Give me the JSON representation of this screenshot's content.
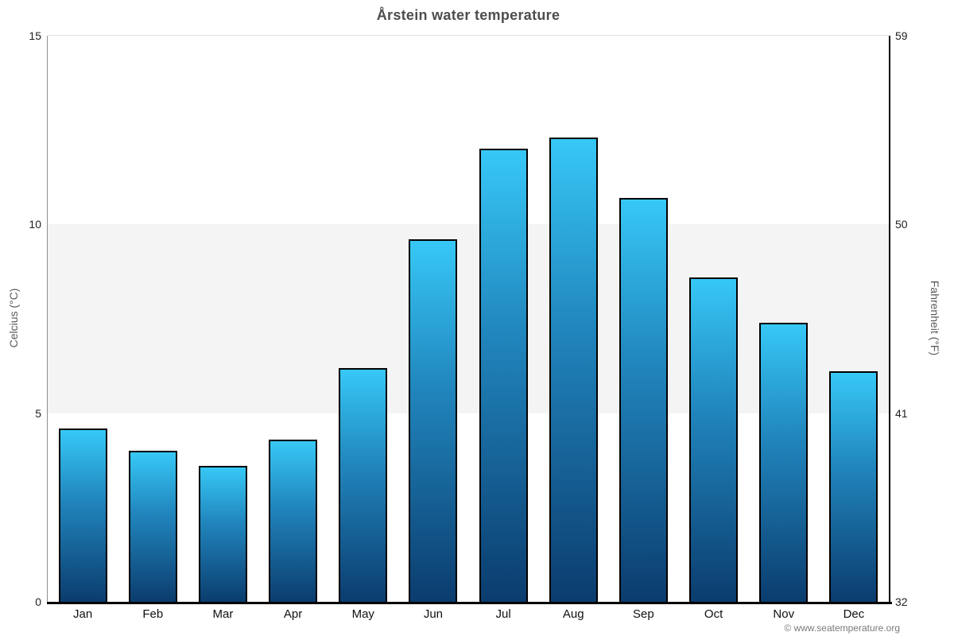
{
  "page": {
    "title": "Årstein water temperature",
    "footer": "© www.seatemperature.org"
  },
  "chart_data": {
    "type": "bar",
    "title": "Årstein water temperature",
    "categories": [
      "Jan",
      "Feb",
      "Mar",
      "Apr",
      "May",
      "Jun",
      "Jul",
      "Aug",
      "Sep",
      "Oct",
      "Nov",
      "Dec"
    ],
    "values": [
      4.6,
      4.0,
      3.6,
      4.3,
      6.2,
      9.6,
      12.0,
      12.3,
      10.7,
      8.6,
      7.4,
      6.1
    ],
    "series_name": "Water temperature (°C)",
    "xlabel": "",
    "ylabel_left": "Celcius (°C)",
    "ylabel_right": "Fahrenheit (°F)",
    "ylim": [
      0,
      15
    ],
    "yticks_left": [
      15,
      10,
      5,
      0
    ],
    "yticks_right": [
      59,
      50,
      41,
      32
    ],
    "grid": "off",
    "legend": "none",
    "plot_band": {
      "from": 5,
      "to": 10,
      "color": "#f4f4f4"
    },
    "colors": {
      "bar_gradient_top": "#37c8f6",
      "bar_gradient_mid": "#2187be",
      "bar_gradient_bottom": "#0b3c6e",
      "bar_border": "#000000",
      "axis_left": "#8f8f8f",
      "axis_right": "#000000",
      "axis_bottom": "#000000",
      "title_color": "#4d4d4d",
      "tick_color": "#1f1f1f",
      "axis_label_color": "#595959",
      "footer_color": "#7a7a7a",
      "background": "#ffffff"
    }
  }
}
